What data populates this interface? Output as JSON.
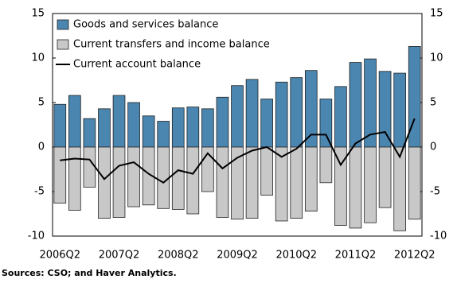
{
  "chart_data": {
    "type": "bar",
    "categories": [
      "2006Q2",
      null,
      null,
      null,
      "2007Q2",
      null,
      null,
      null,
      "2008Q2",
      null,
      null,
      null,
      "2009Q2",
      null,
      null,
      null,
      "2010Q2",
      null,
      null,
      null,
      "2011Q2",
      null,
      null,
      null,
      "2012Q2"
    ],
    "series": [
      {
        "name": "Goods and services balance",
        "type": "bar",
        "color": "#4a86b0",
        "values": [
          4.8,
          5.8,
          3.2,
          4.3,
          5.8,
          5.0,
          3.5,
          2.9,
          4.4,
          4.5,
          4.3,
          5.6,
          6.9,
          7.6,
          5.4,
          7.3,
          7.8,
          8.6,
          5.4,
          6.8,
          9.5,
          9.9,
          8.5,
          8.3,
          11.3
        ]
      },
      {
        "name": "Current transfers and income balance",
        "type": "bar",
        "color": "#c8c8c8",
        "values": [
          -6.3,
          -7.1,
          -4.5,
          -8.0,
          -7.9,
          -6.7,
          -6.5,
          -6.9,
          -7.0,
          -7.5,
          -5.0,
          -7.9,
          -8.1,
          -8.0,
          -5.4,
          -8.3,
          -8.0,
          -7.2,
          -4.0,
          -8.8,
          -9.1,
          -8.5,
          -6.8,
          -9.4,
          -8.1
        ]
      },
      {
        "name": "Current account balance",
        "type": "line",
        "color": "#000000",
        "values": [
          -1.5,
          -1.3,
          -1.4,
          -3.6,
          -2.1,
          -1.7,
          -3.0,
          -4.0,
          -2.6,
          -3.0,
          -0.7,
          -2.4,
          -1.2,
          -0.4,
          0.0,
          -1.1,
          -0.2,
          1.4,
          1.4,
          -2.0,
          0.4,
          1.4,
          1.7,
          -1.1,
          3.2
        ]
      }
    ],
    "ylim": [
      -10,
      15
    ],
    "yticks": [
      -10,
      -5,
      0,
      5,
      10,
      15
    ],
    "y2lim": [
      -10,
      15
    ],
    "y2ticks": [
      -10,
      -5,
      0,
      5,
      10,
      15
    ],
    "legend": "top-left",
    "source": "Sources: CSO; and Haver Analytics."
  }
}
